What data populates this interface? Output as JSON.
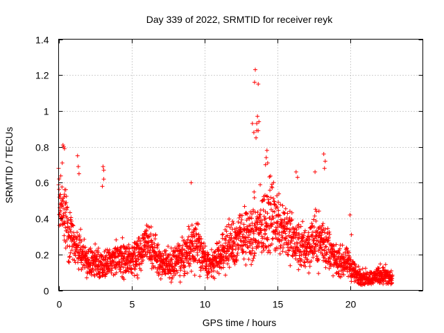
{
  "chart_data": {
    "type": "scatter",
    "title": "Day 339 of 2022, SRMTID for receiver reyk",
    "xlabel": "GPS time / hours",
    "ylabel": "SRMTID / TECUs",
    "xlim": [
      0,
      25
    ],
    "ylim": [
      0,
      1.4
    ],
    "xticks": [
      0,
      5,
      10,
      15,
      20
    ],
    "yticks": [
      0,
      0.2,
      0.4,
      0.6,
      0.8,
      1.0,
      1.2,
      1.4
    ],
    "xtick_labels": [
      "0",
      "5",
      "10",
      "15",
      "20"
    ],
    "ytick_labels": [
      "0",
      "0.2",
      "0.4",
      "0.6",
      "0.8",
      "1",
      "1.2",
      "1.4"
    ],
    "grid": true,
    "marker": "+",
    "color": "#ff0000",
    "series": [
      {
        "name": "reyk",
        "profile_x": [
          0.0,
          0.3,
          0.6,
          1.0,
          1.5,
          2.0,
          2.5,
          3.0,
          3.5,
          4.0,
          4.5,
          5.0,
          5.5,
          6.0,
          6.5,
          7.0,
          7.5,
          8.0,
          8.5,
          9.0,
          9.5,
          10.0,
          10.5,
          11.0,
          11.5,
          12.0,
          12.5,
          13.0,
          13.5,
          14.0,
          14.5,
          15.0,
          15.5,
          16.0,
          16.5,
          17.0,
          17.5,
          18.0,
          18.5,
          19.0,
          19.5,
          20.0,
          20.5,
          21.0,
          21.5,
          22.0,
          22.5,
          22.9
        ],
        "profile_y": [
          0.48,
          0.44,
          0.36,
          0.26,
          0.22,
          0.16,
          0.15,
          0.15,
          0.16,
          0.18,
          0.18,
          0.16,
          0.2,
          0.26,
          0.22,
          0.16,
          0.15,
          0.16,
          0.18,
          0.24,
          0.28,
          0.16,
          0.14,
          0.18,
          0.24,
          0.26,
          0.3,
          0.3,
          0.32,
          0.36,
          0.42,
          0.38,
          0.36,
          0.28,
          0.24,
          0.24,
          0.28,
          0.28,
          0.24,
          0.16,
          0.16,
          0.14,
          0.08,
          0.07,
          0.07,
          0.09,
          0.08,
          0.06
        ],
        "spread": [
          0.14,
          0.16,
          0.14,
          0.09,
          0.07,
          0.06,
          0.06,
          0.06,
          0.06,
          0.07,
          0.07,
          0.06,
          0.08,
          0.09,
          0.08,
          0.06,
          0.06,
          0.07,
          0.08,
          0.1,
          0.12,
          0.06,
          0.06,
          0.07,
          0.09,
          0.1,
          0.11,
          0.12,
          0.14,
          0.15,
          0.15,
          0.14,
          0.13,
          0.11,
          0.1,
          0.1,
          0.11,
          0.11,
          0.1,
          0.06,
          0.06,
          0.06,
          0.04,
          0.03,
          0.03,
          0.04,
          0.04,
          0.03
        ],
        "outliers_x": [
          0.3,
          0.35,
          0.4,
          0.25,
          0.0,
          1.3,
          1.35,
          1.4,
          3.05,
          3.1,
          3.1,
          3.0,
          9.1,
          13.5,
          13.45,
          13.7,
          13.65,
          13.75,
          13.6,
          13.7,
          13.6,
          13.55,
          13.3,
          13.4,
          14.3,
          14.25,
          14.35,
          14.2,
          16.3,
          16.4,
          17.6,
          18.2,
          18.3,
          18.25,
          20.0,
          20.1
        ],
        "outliers_y": [
          0.81,
          0.8,
          0.79,
          0.71,
          0.68,
          0.75,
          0.69,
          0.65,
          0.69,
          0.67,
          0.62,
          0.58,
          0.6,
          1.23,
          1.16,
          1.15,
          0.97,
          0.94,
          0.93,
          0.89,
          0.89,
          0.85,
          0.93,
          0.88,
          0.78,
          0.74,
          0.71,
          0.7,
          0.66,
          0.63,
          0.66,
          0.76,
          0.72,
          0.68,
          0.42,
          0.31
        ],
        "n_points": 2400
      }
    ]
  }
}
